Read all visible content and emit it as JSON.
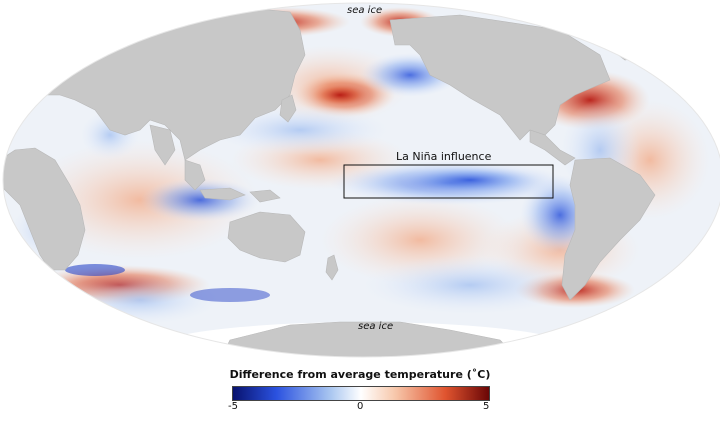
{
  "map": {
    "labels": {
      "sea_ice_north": "sea ice",
      "sea_ice_south": "sea ice",
      "la_nina": "La Niña influence"
    }
  },
  "legend": {
    "title": "Difference from average temperature (˚C)",
    "min_label": "-5",
    "mid_label": "0",
    "max_label": "5",
    "scale_min": -5,
    "scale_max": 5,
    "colors": [
      "#08126e",
      "#2b52e0",
      "#a9c6f0",
      "#ffffff",
      "#f7c9ad",
      "#e0542f",
      "#6a0606"
    ]
  },
  "colors": {
    "land": "#c8c8c8",
    "ocean_neutral": "#f3f3f3",
    "warm_anomaly": "#b51f1a",
    "cool_anomaly": "#3860d8"
  }
}
